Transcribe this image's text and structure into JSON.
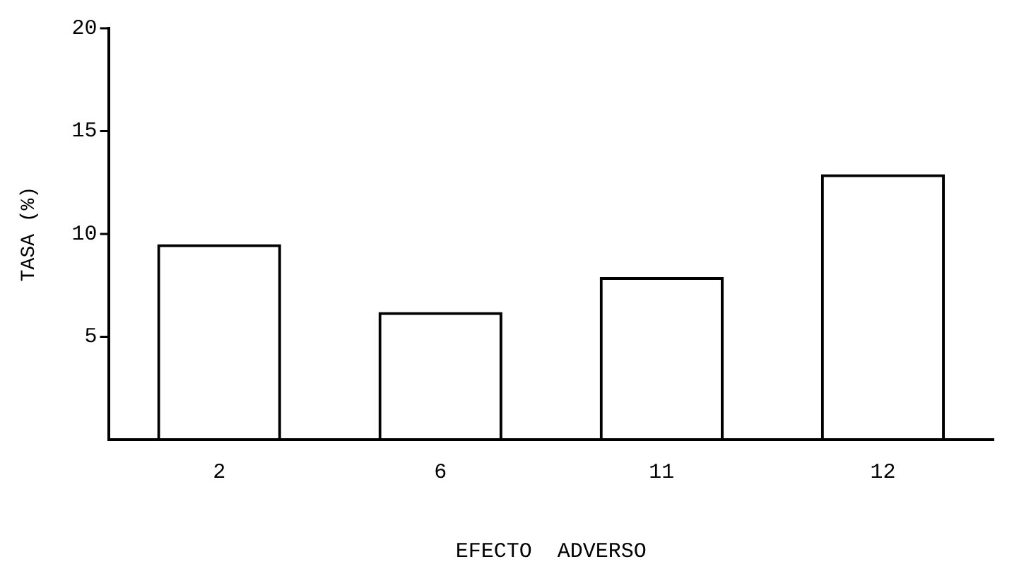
{
  "chart_data": {
    "type": "bar",
    "xlabel": "EFECTO  ADVERSO",
    "ylabel": "TASA (%)",
    "categories": [
      "2",
      "6",
      "11",
      "12"
    ],
    "values": [
      9.5,
      6.2,
      7.9,
      12.9
    ],
    "color": "#000000",
    "ylim": [
      0,
      20
    ],
    "yticks": [
      5,
      10,
      15,
      20
    ],
    "grid": false,
    "legend": false
  }
}
